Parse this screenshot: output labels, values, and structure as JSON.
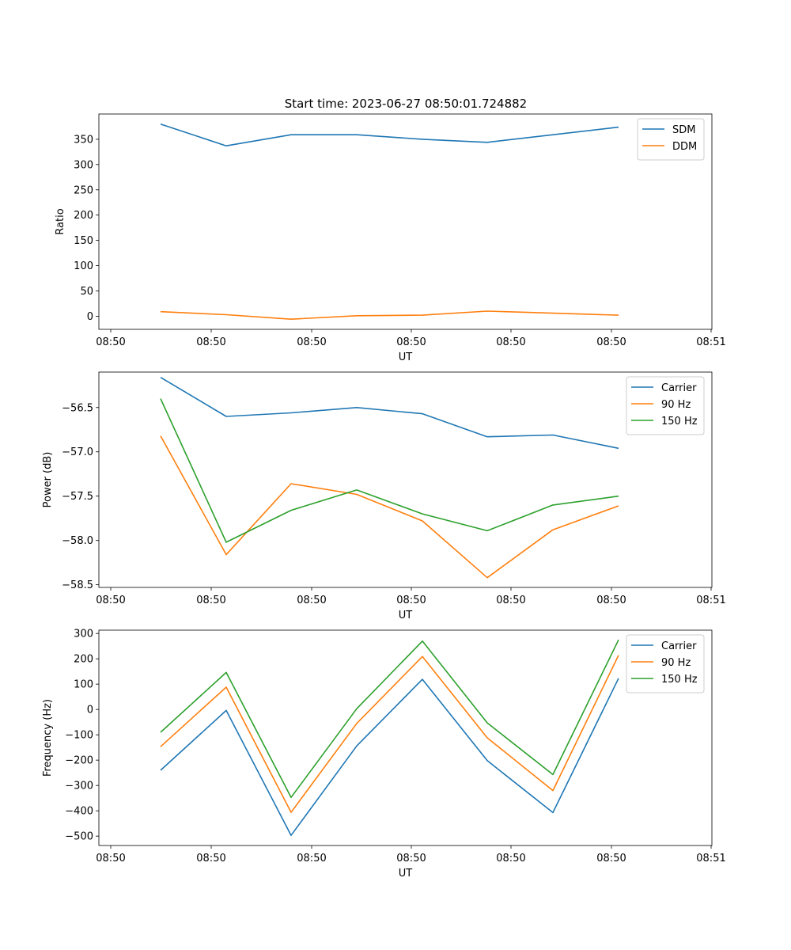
{
  "figure": {
    "title": "Start time: 2023-06-27 08:50:01.724882"
  },
  "chart_data": [
    {
      "type": "line",
      "xlabel": "UT",
      "ylabel": "Ratio",
      "x_ticks": [
        "08:50",
        "08:50",
        "08:50",
        "08:50",
        "08:50",
        "08:50",
        "08:51"
      ],
      "yticks": [
        0,
        50,
        100,
        150,
        200,
        250,
        300,
        350
      ],
      "ylim": [
        -26,
        400
      ],
      "grid": false,
      "legend": "upper-right",
      "series": [
        {
          "name": "SDM",
          "color": "#1f77b4",
          "values": [
            380,
            337,
            359,
            359,
            350,
            344,
            359,
            374
          ]
        },
        {
          "name": "DDM",
          "color": "#ff7f0e",
          "values": [
            9,
            3,
            -6,
            1,
            2,
            10,
            6,
            2
          ]
        }
      ]
    },
    {
      "type": "line",
      "xlabel": "UT",
      "ylabel": "Power (dB)",
      "x_ticks": [
        "08:50",
        "08:50",
        "08:50",
        "08:50",
        "08:50",
        "08:50",
        "08:51"
      ],
      "yticks": [
        -58.5,
        -58.0,
        -57.5,
        -57.0,
        -56.5
      ],
      "ytick_labels": [
        "−58.5",
        "−58.0",
        "−57.5",
        "−57.0",
        "−56.5"
      ],
      "ylim": [
        -58.53,
        -56.1
      ],
      "grid": false,
      "legend": "upper-right",
      "series": [
        {
          "name": "Carrier",
          "color": "#1f77b4",
          "values": [
            -56.16,
            -56.6,
            -56.56,
            -56.5,
            -56.57,
            -56.83,
            -56.81,
            -56.96
          ]
        },
        {
          "name": "90 Hz",
          "color": "#ff7f0e",
          "values": [
            -56.82,
            -58.16,
            -57.36,
            -57.48,
            -57.78,
            -58.42,
            -57.88,
            -57.61
          ]
        },
        {
          "name": "150 Hz",
          "color": "#2ca02c",
          "values": [
            -56.4,
            -58.02,
            -57.66,
            -57.43,
            -57.7,
            -57.89,
            -57.6,
            -57.5
          ]
        }
      ]
    },
    {
      "type": "line",
      "xlabel": "UT",
      "ylabel": "Frequency (Hz)",
      "x_ticks": [
        "08:50",
        "08:50",
        "08:50",
        "08:50",
        "08:50",
        "08:50",
        "08:51"
      ],
      "yticks": [
        -500,
        -400,
        -300,
        -200,
        -100,
        0,
        100,
        200,
        300
      ],
      "ytick_labels": [
        "−500",
        "−400",
        "−300",
        "−200",
        "−100",
        "0",
        "100",
        "200",
        "300"
      ],
      "ylim": [
        -537,
        313
      ],
      "grid": false,
      "legend": "upper-right",
      "series": [
        {
          "name": "Carrier",
          "color": "#1f77b4",
          "values": [
            -240,
            -4,
            -497,
            -144,
            119,
            -202,
            -407,
            123
          ]
        },
        {
          "name": "90 Hz",
          "color": "#ff7f0e",
          "values": [
            -147,
            88,
            -406,
            -55,
            209,
            -112,
            -320,
            214
          ]
        },
        {
          "name": "150 Hz",
          "color": "#2ca02c",
          "values": [
            -90,
            146,
            -347,
            3,
            270,
            -53,
            -257,
            275
          ]
        }
      ]
    }
  ]
}
